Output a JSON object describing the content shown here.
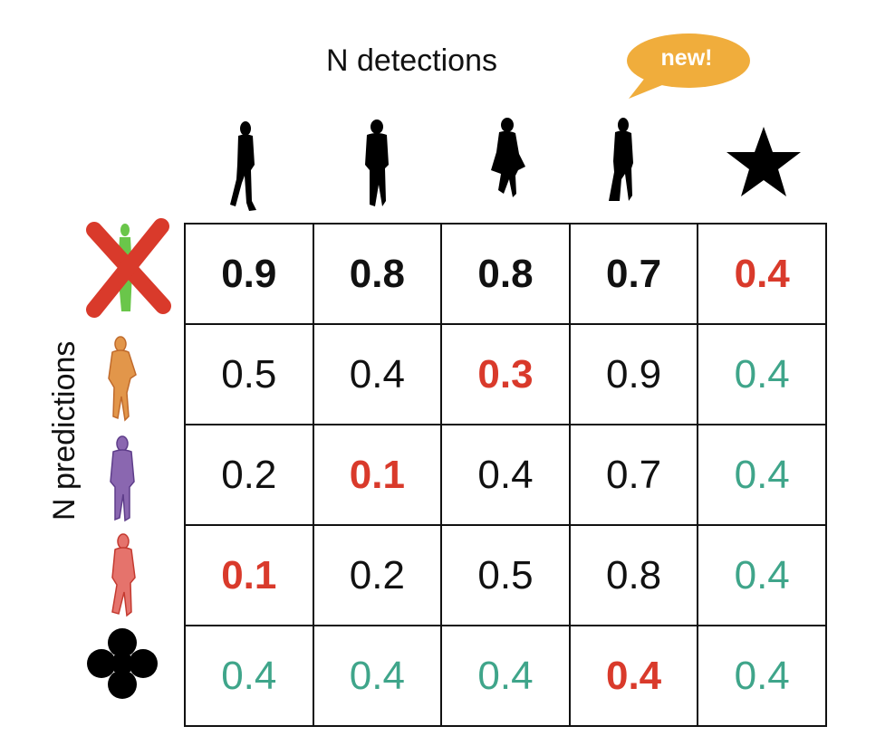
{
  "column_axis_title": "N detections",
  "row_axis_title": "N predictions",
  "callout_text": "new!",
  "colors": {
    "bold_black": "#111111",
    "highlight_red": "#d93a2b",
    "padding_green": "#3fa58a",
    "callout_orange": "#f0ad3c",
    "pred_green": "#6ac64a",
    "pred_orange": "#e2964a",
    "pred_purple": "#8a67b0",
    "pred_red": "#e5736c"
  },
  "columns": [
    {
      "icon": "person-walking-silhouette-icon"
    },
    {
      "icon": "person-standing-silhouette-icon"
    },
    {
      "icon": "person-coat-silhouette-icon"
    },
    {
      "icon": "person-side-silhouette-icon"
    },
    {
      "icon": "star-icon"
    }
  ],
  "rows": [
    {
      "icon": "crossed-out-green-person-icon",
      "cells": [
        {
          "text": "0.9",
          "style": "bold"
        },
        {
          "text": "0.8",
          "style": "bold"
        },
        {
          "text": "0.8",
          "style": "bold"
        },
        {
          "text": "0.7",
          "style": "bold"
        },
        {
          "text": "0.4",
          "style": "red"
        }
      ]
    },
    {
      "icon": "orange-person-icon",
      "cells": [
        {
          "text": "0.5",
          "style": "normal"
        },
        {
          "text": "0.4",
          "style": "normal"
        },
        {
          "text": "0.3",
          "style": "red"
        },
        {
          "text": "0.9",
          "style": "normal"
        },
        {
          "text": "0.4",
          "style": "green"
        }
      ]
    },
    {
      "icon": "purple-person-icon",
      "cells": [
        {
          "text": "0.2",
          "style": "normal"
        },
        {
          "text": "0.1",
          "style": "red"
        },
        {
          "text": "0.4",
          "style": "normal"
        },
        {
          "text": "0.7",
          "style": "normal"
        },
        {
          "text": "0.4",
          "style": "green"
        }
      ]
    },
    {
      "icon": "red-person-icon",
      "cells": [
        {
          "text": "0.1",
          "style": "red"
        },
        {
          "text": "0.2",
          "style": "normal"
        },
        {
          "text": "0.5",
          "style": "normal"
        },
        {
          "text": "0.8",
          "style": "normal"
        },
        {
          "text": "0.4",
          "style": "green"
        }
      ]
    },
    {
      "icon": "four-leaf-clover-icon",
      "cells": [
        {
          "text": "0.4",
          "style": "green"
        },
        {
          "text": "0.4",
          "style": "green"
        },
        {
          "text": "0.4",
          "style": "green"
        },
        {
          "text": "0.4",
          "style": "red"
        },
        {
          "text": "0.4",
          "style": "green"
        }
      ]
    }
  ]
}
